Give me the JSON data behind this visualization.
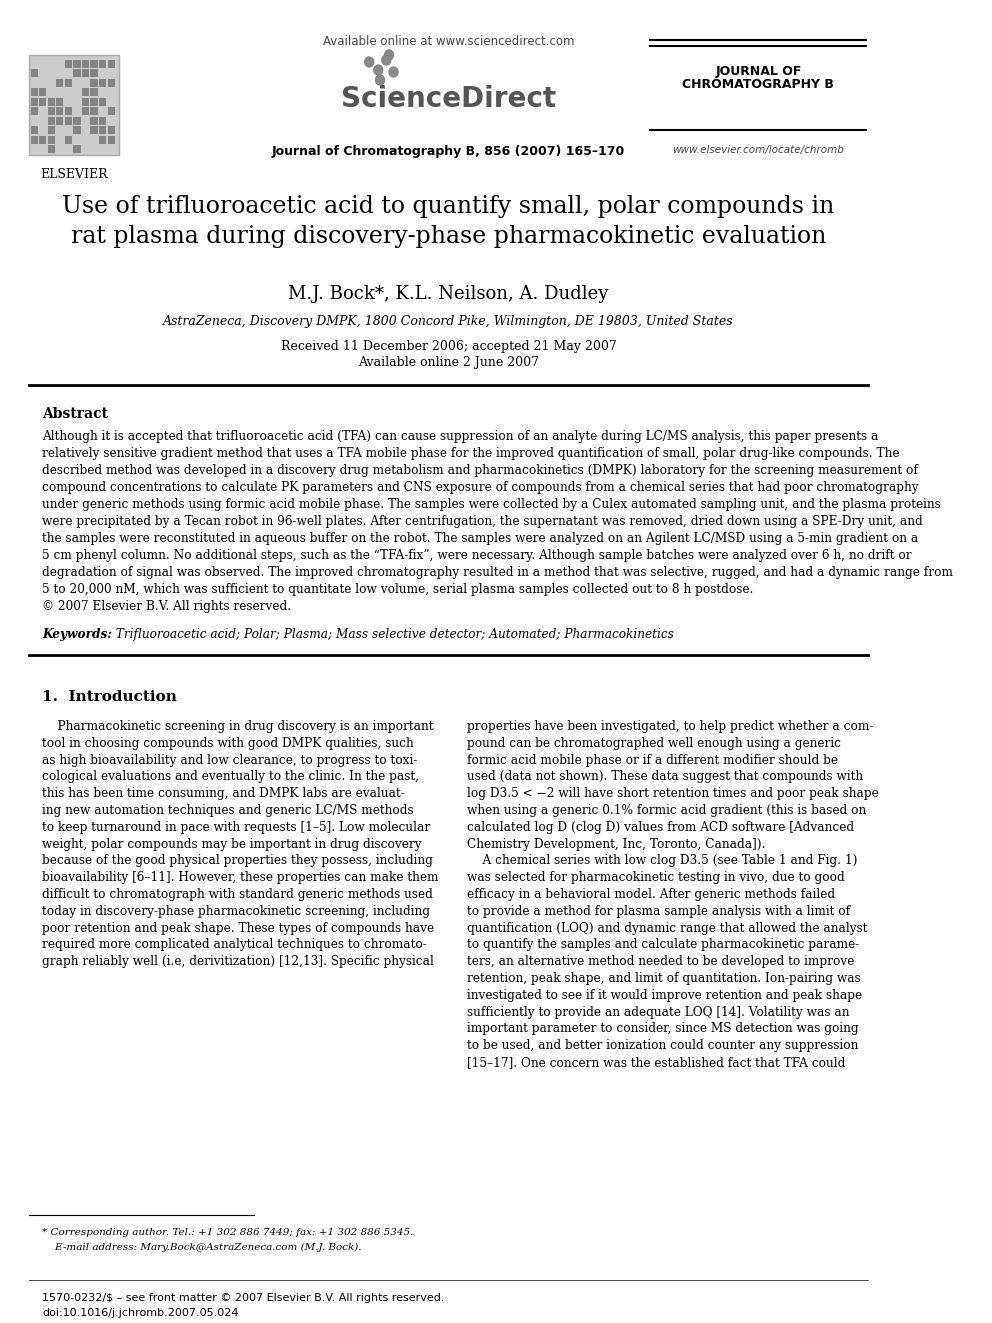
{
  "bg_color": "#ffffff",
  "header": {
    "available_online": "Available online at www.sciencedirect.com",
    "sciencedirect_text": "ScienceDirect",
    "journal_line1": "JOURNAL OF",
    "journal_line2": "CHROMATOGRAPHY B",
    "journal_citation": "Journal of Chromatography B, 856 (2007) 165–170",
    "elsevier_text": "ELSEVIER",
    "website": "www.elsevier.com/locate/chromb"
  },
  "title": "Use of trifluoroacetic acid to quantify small, polar compounds in\nrat plasma during discovery-phase pharmacokinetic evaluation",
  "authors": "M.J. Bock*, K.L. Neilson, A. Dudley",
  "affiliation": "AstraZeneca, Discovery DMPK, 1800 Concord Pike, Wilmington, DE 19803, United States",
  "received": "Received 11 December 2006; accepted 21 May 2007",
  "available": "Available online 2 June 2007",
  "abstract_title": "Abstract",
  "abstract_text": "Although it is accepted that trifluoroacetic acid (TFA) can cause suppression of an analyte during LC/MS analysis, this paper presents a\nrelatively sensitive gradient method that uses a TFA mobile phase for the improved quantification of small, polar drug-like compounds. The\ndescribed method was developed in a discovery drug metabolism and pharmacokinetics (DMPK) laboratory for the screening measurement of\ncompound concentrations to calculate PK parameters and CNS exposure of compounds from a chemical series that had poor chromatography\nunder generic methods using formic acid mobile phase. The samples were collected by a Culex automated sampling unit, and the plasma proteins\nwere precipitated by a Tecan robot in 96-well plates. After centrifugation, the supernatant was removed, dried down using a SPE-Dry unit, and\nthe samples were reconstituted in aqueous buffer on the robot. The samples were analyzed on an Agilent LC/MSD using a 5-min gradient on a\n5 cm phenyl column. No additional steps, such as the “TFA-fix”, were necessary. Although sample batches were analyzed over 6 h, no drift or\ndegradation of signal was observed. The improved chromatography resulted in a method that was selective, rugged, and had a dynamic range from\n5 to 20,000 nM, which was sufficient to quantitate low volume, serial plasma samples collected out to 8 h postdose.\n© 2007 Elsevier B.V. All rights reserved.",
  "keywords_label": "Keywords:",
  "keywords_text": "  Trifluoroacetic acid; Polar; Plasma; Mass selective detector; Automated; Pharmacokinetics",
  "section1_title": "1.  Introduction",
  "intro_left": "    Pharmacokinetic screening in drug discovery is an important\ntool in choosing compounds with good DMPK qualities, such\nas high bioavailability and low clearance, to progress to toxi-\ncological evaluations and eventually to the clinic. In the past,\nthis has been time consuming, and DMPK labs are evaluat-\ning new automation techniques and generic LC/MS methods\nto keep turnaround in pace with requests [1–5]. Low molecular\nweight, polar compounds may be important in drug discovery\nbecause of the good physical properties they possess, including\nbioavailability [6–11]. However, these properties can make them\ndifficult to chromatograph with standard generic methods used\ntoday in discovery-phase pharmacokinetic screening, including\npoor retention and peak shape. These types of compounds have\nrequired more complicated analytical techniques to chromato-\ngraph reliably well (i.e, derivitization) [12,13]. Specific physical",
  "intro_right": "properties have been investigated, to help predict whether a com-\npound can be chromatographed well enough using a generic\nformic acid mobile phase or if a different modifier should be\nused (data not shown). These data suggest that compounds with\nlog D3.5 < −2 will have short retention times and poor peak shape\nwhen using a generic 0.1% formic acid gradient (this is based on\ncalculated log D (clog D) values from ACD software [Advanced\nChemistry Development, Inc, Toronto, Canada]).\n    A chemical series with low clog D3.5 (see Table 1 and Fig. 1)\nwas selected for pharmacokinetic testing in vivo, due to good\nefficacy in a behavioral model. After generic methods failed\nto provide a method for plasma sample analysis with a limit of\nquantification (LOQ) and dynamic range that allowed the analyst\nto quantify the samples and calculate pharmacokinetic parame-\nters, an alternative method needed to be developed to improve\nretention, peak shape, and limit of quantitation. Ion-pairing was\ninvestigated to see if it would improve retention and peak shape\nsufficiently to provide an adequate LOQ [14]. Volatility was an\nimportant parameter to consider, since MS detection was going\nto be used, and better ionization could counter any suppression\n[15–17]. One concern was the established fact that TFA could",
  "footnote_star": "* Corresponding author. Tel.: +1 302 886 7449; fax: +1 302 886 5345.",
  "footnote_email": "    E-mail address: Mary.Bock@AstraZeneca.com (M.J. Bock).",
  "footer_issn": "1570-0232/$ – see front matter © 2007 Elsevier B.V. All rights reserved.",
  "footer_doi": "doi:10.1016/j.jchromb.2007.05.024"
}
